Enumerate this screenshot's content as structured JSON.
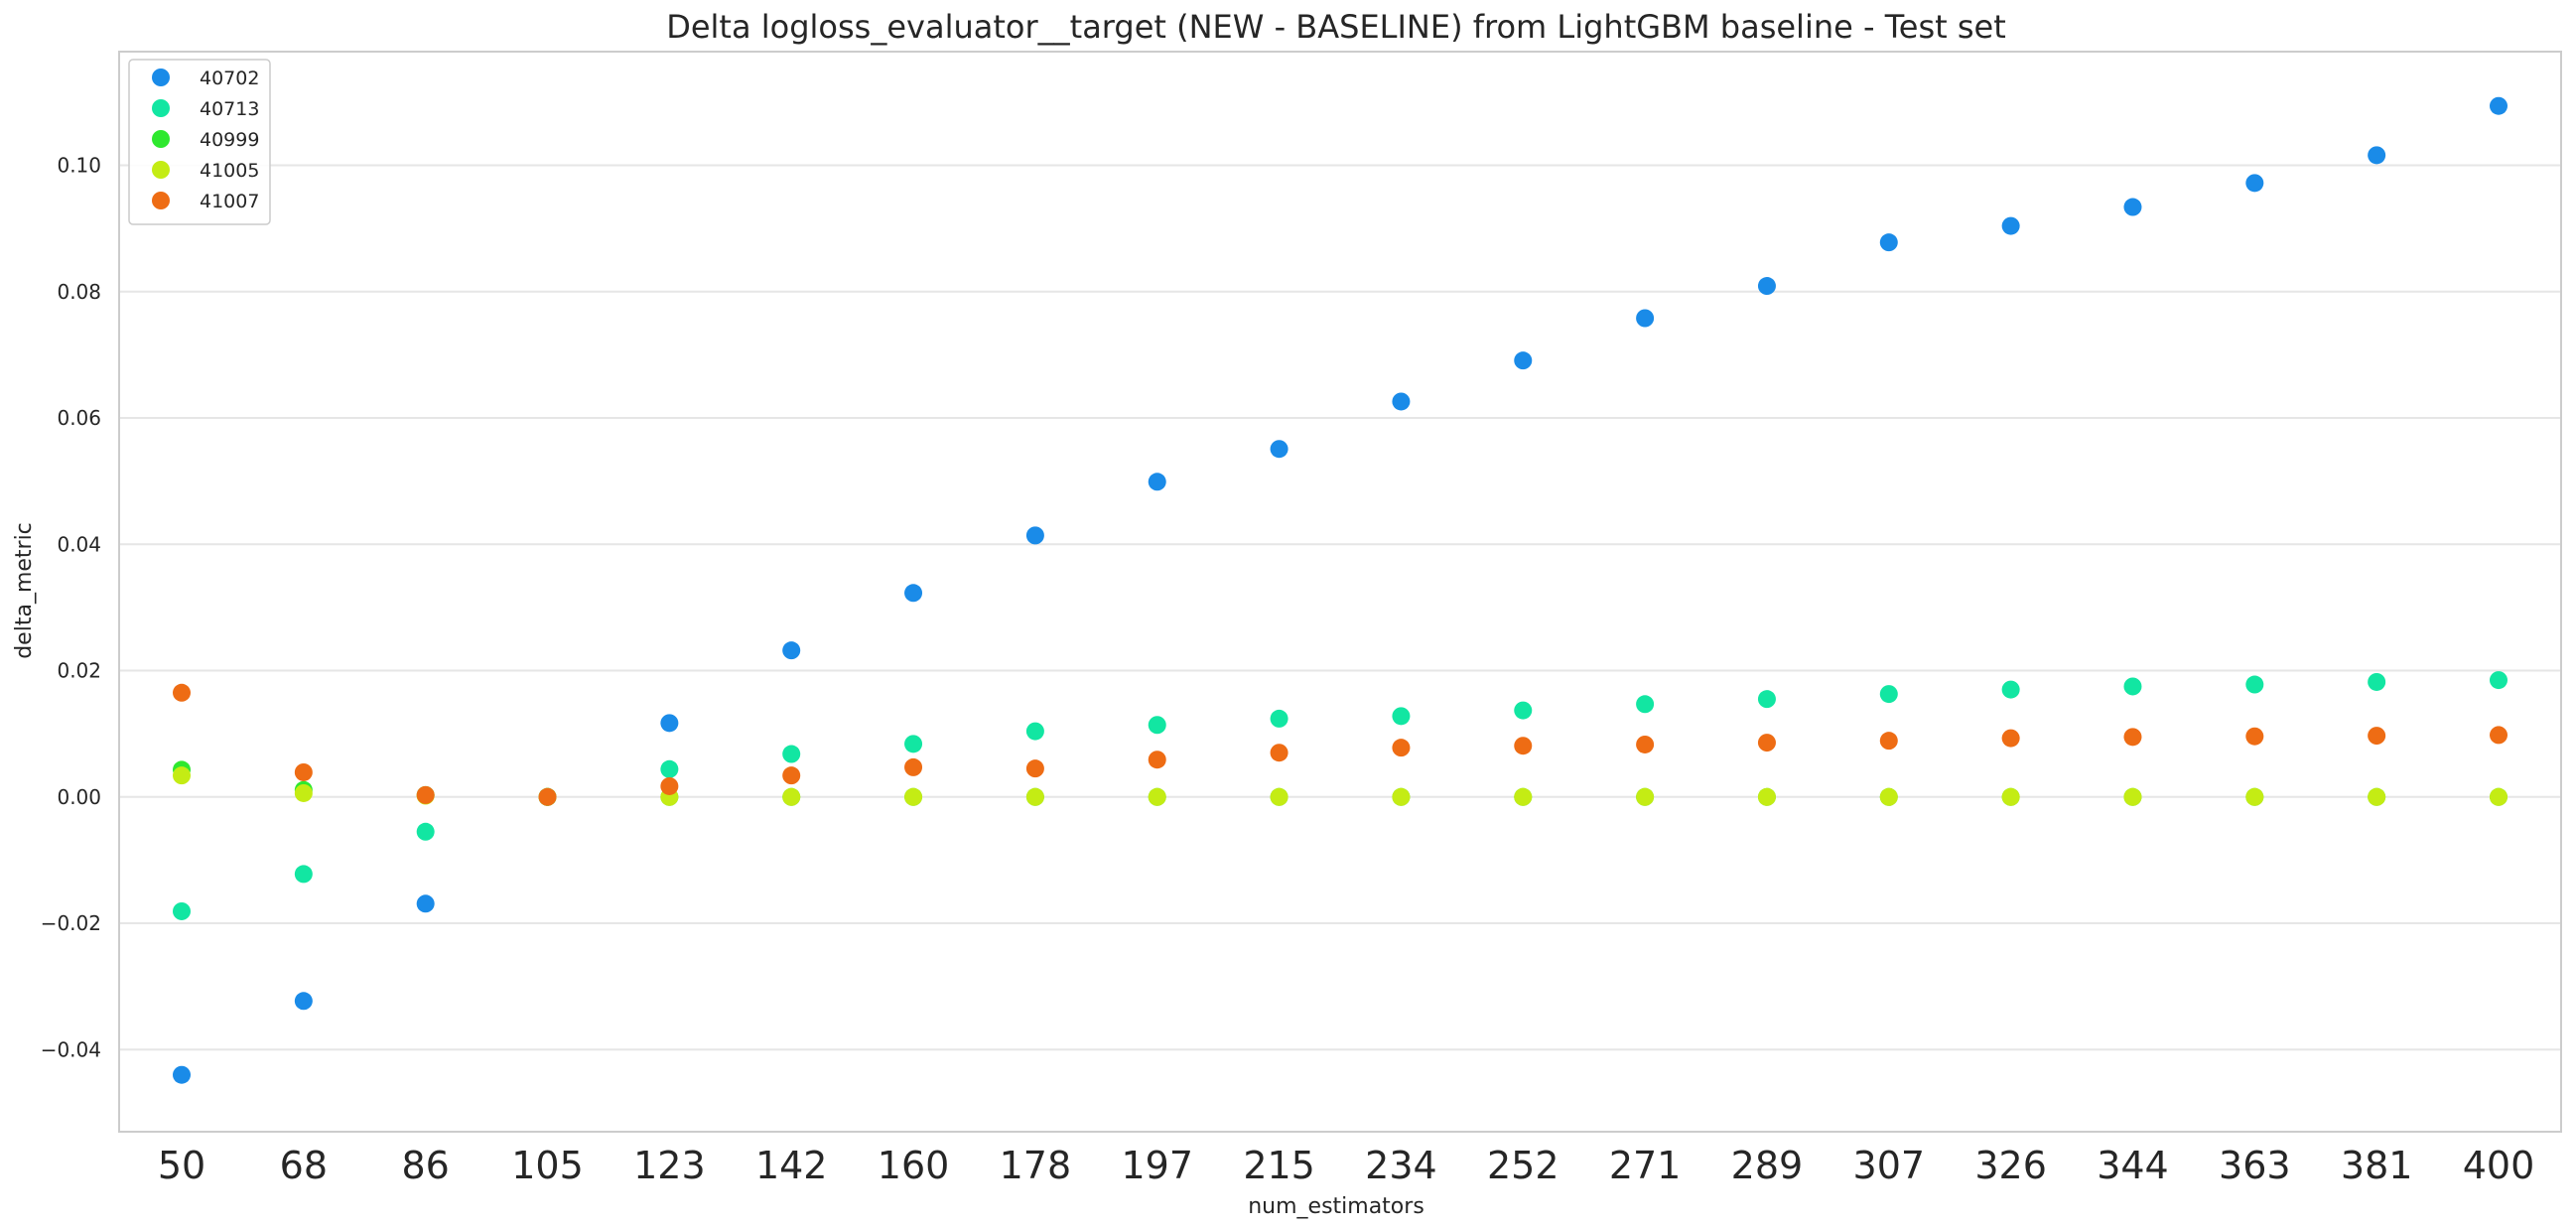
{
  "chart_data": {
    "type": "scatter",
    "title": "Delta logloss_evaluator__target (NEW - BASELINE) from LightGBM baseline - Test set",
    "xlabel": "num_estimators",
    "ylabel": "delta_metric",
    "categories": [
      "50",
      "68",
      "86",
      "105",
      "123",
      "142",
      "160",
      "178",
      "197",
      "215",
      "234",
      "252",
      "271",
      "289",
      "307",
      "326",
      "344",
      "363",
      "381",
      "400"
    ],
    "ylim": [
      -0.053,
      0.118
    ],
    "yticks": [
      -0.04,
      -0.02,
      0.0,
      0.02,
      0.04,
      0.06,
      0.08,
      0.1
    ],
    "ytick_labels": [
      "−0.04",
      "−0.02",
      "0.00",
      "0.02",
      "0.04",
      "0.06",
      "0.08",
      "0.10"
    ],
    "grid": "horizontal",
    "legend_position": "top-left",
    "series": [
      {
        "name": "40702",
        "color": "#1a8be8",
        "values": [
          -0.044,
          -0.0323,
          -0.0169,
          0.0,
          0.0117,
          0.0232,
          0.0323,
          0.0414,
          0.0499,
          0.0551,
          0.0626,
          0.0691,
          0.0758,
          0.0809,
          0.0878,
          0.0904,
          0.0934,
          0.0972,
          0.1016,
          0.1094
        ]
      },
      {
        "name": "40713",
        "color": "#12e6a2",
        "values": [
          -0.0181,
          -0.0122,
          -0.0055,
          0.0,
          0.0044,
          0.0068,
          0.0084,
          0.0104,
          0.0114,
          0.0124,
          0.0128,
          0.0137,
          0.0147,
          0.0155,
          0.0163,
          0.017,
          0.0175,
          0.0178,
          0.0182,
          0.0185
        ]
      },
      {
        "name": "40999",
        "color": "#2ee82e",
        "values": [
          0.0043,
          0.0011,
          0.0003,
          0.0,
          0.0,
          0.0,
          0.0,
          0.0,
          0.0,
          0.0,
          0.0,
          0.0,
          0.0,
          0.0,
          0.0,
          0.0,
          0.0,
          0.0,
          0.0,
          0.0
        ]
      },
      {
        "name": "41005",
        "color": "#c4ec14",
        "values": [
          0.0034,
          0.0006,
          0.0002,
          0.0,
          0.0,
          0.0,
          0.0,
          0.0,
          0.0,
          0.0,
          0.0,
          0.0,
          0.0,
          0.0,
          0.0,
          0.0,
          0.0,
          0.0,
          0.0,
          0.0
        ]
      },
      {
        "name": "41007",
        "color": "#ee6c14",
        "values": [
          0.0165,
          0.0039,
          0.0003,
          0.0,
          0.0017,
          0.0034,
          0.0047,
          0.0045,
          0.0059,
          0.007,
          0.0078,
          0.0081,
          0.0083,
          0.0086,
          0.0089,
          0.0093,
          0.0095,
          0.0096,
          0.0097,
          0.0098
        ]
      }
    ]
  }
}
